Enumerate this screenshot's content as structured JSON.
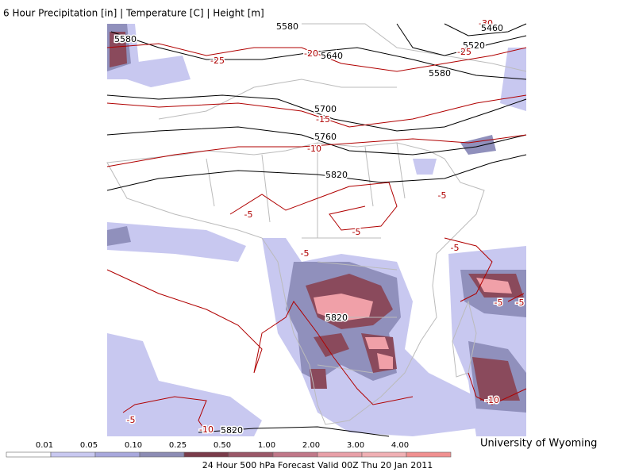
{
  "header": {
    "title": "6 Hour Precipitation [in] | Temperature [C] | Height [m]"
  },
  "contour_labels": [
    "5580",
    "5580",
    "-30",
    "5460",
    "5520",
    "-25",
    "-25",
    "-20",
    "5640",
    "5580",
    "5700",
    "-15",
    "5760",
    "-10",
    "5820",
    "-5",
    "-5",
    "-5",
    "-5",
    "-5",
    "5820",
    "-5",
    "-5",
    "-10",
    "-5",
    "-10",
    "5820"
  ],
  "colorbar": {
    "labels": [
      "0.01",
      "0.05",
      "0.10",
      "0.25",
      "0.50",
      "1.00",
      "2.00",
      "3.00",
      "4.00"
    ]
  },
  "credit": "University of Wyoming",
  "footer": "24 Hour 500 hPa Forecast Valid 00Z Thu 20 Jan 2011"
}
